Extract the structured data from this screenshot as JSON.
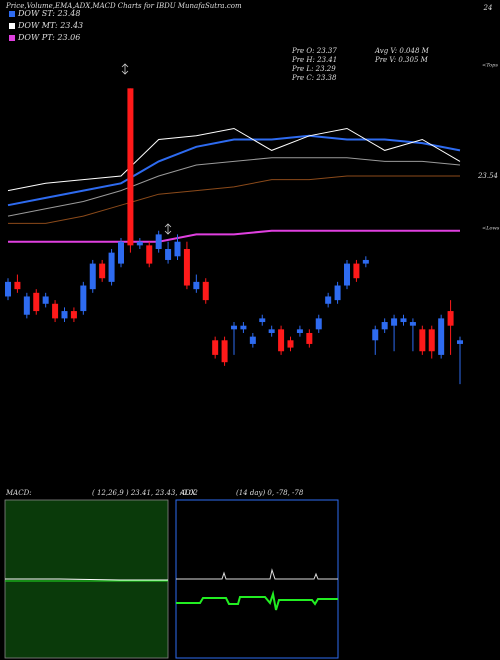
{
  "chart_data": {
    "type": "candlestick",
    "title": "Price,Volume,EMA,ADX,MACD Charts for IBDU MunafaSutra.com",
    "ylim": [
      22.68,
      24
    ],
    "yticks": [
      24,
      23.54
    ],
    "up_color": "#2e6bf0",
    "down_color": "#ff1a1a",
    "open": [
      23.21,
      23.25,
      23.16,
      23.22,
      23.19,
      23.19,
      23.15,
      23.17,
      23.17,
      23.23,
      23.3,
      23.25,
      23.3,
      23.78,
      23.35,
      23.35,
      23.34,
      23.31,
      23.32,
      23.34,
      23.23,
      23.25,
      23.09,
      23.09,
      23.12,
      23.12,
      23.08,
      23.14,
      23.11,
      23.12,
      23.09,
      23.11,
      23.11,
      23.12,
      23.19,
      23.2,
      23.24,
      23.3,
      23.3,
      23.09,
      23.12,
      23.13,
      23.14,
      23.13,
      23.12,
      23.12,
      23.05,
      23.17,
      23.08
    ],
    "high": [
      23.26,
      23.27,
      23.22,
      23.23,
      23.22,
      23.2,
      23.18,
      23.18,
      23.25,
      23.31,
      23.31,
      23.34,
      23.37,
      23.78,
      23.37,
      23.36,
      23.39,
      23.36,
      23.38,
      23.36,
      23.27,
      23.26,
      23.1,
      23.1,
      23.14,
      23.14,
      23.11,
      23.16,
      23.13,
      23.13,
      23.1,
      23.13,
      23.12,
      23.16,
      23.22,
      23.25,
      23.31,
      23.31,
      23.32,
      23.13,
      23.15,
      23.16,
      23.16,
      23.15,
      23.13,
      23.13,
      23.16,
      23.2,
      23.1
    ],
    "low": [
      23.2,
      23.22,
      23.15,
      23.16,
      23.18,
      23.14,
      23.14,
      23.14,
      23.16,
      23.22,
      23.25,
      23.24,
      23.29,
      23.33,
      23.34,
      23.29,
      23.33,
      23.3,
      23.31,
      23.23,
      23.22,
      23.19,
      23.04,
      23.02,
      23.05,
      23.11,
      23.07,
      23.13,
      23.1,
      23.05,
      23.06,
      23.1,
      23.07,
      23.11,
      23.18,
      23.19,
      23.23,
      23.25,
      23.29,
      23.05,
      23.11,
      23.06,
      23.13,
      23.06,
      23.05,
      23.04,
      23.04,
      23.05,
      22.97
    ],
    "close": [
      23.25,
      23.23,
      23.21,
      23.17,
      23.21,
      23.15,
      23.17,
      23.15,
      23.24,
      23.3,
      23.26,
      23.33,
      23.36,
      23.35,
      23.36,
      23.3,
      23.38,
      23.34,
      23.36,
      23.24,
      23.25,
      23.2,
      23.05,
      23.03,
      23.13,
      23.13,
      23.1,
      23.15,
      23.12,
      23.06,
      23.07,
      23.12,
      23.08,
      23.15,
      23.21,
      23.24,
      23.3,
      23.26,
      23.31,
      23.12,
      23.14,
      23.15,
      23.15,
      23.14,
      23.06,
      23.06,
      23.15,
      23.13,
      23.09
    ],
    "series": [
      {
        "name": "DOW ST: 23.48",
        "color": "#2e6bf0",
        "values": [
          23.46,
          23.48,
          23.5,
          23.52,
          23.58,
          23.62,
          23.64,
          23.64,
          23.65,
          23.64,
          23.64,
          23.63,
          23.61
        ]
      },
      {
        "name": "DOW MT: 23.43",
        "color": "#ffffff",
        "values": [
          23.5,
          23.52,
          23.53,
          23.54,
          23.64,
          23.65,
          23.67,
          23.61,
          23.65,
          23.67,
          23.61,
          23.64,
          23.58
        ]
      },
      {
        "name": "DOW PT: 23.06",
        "color": "#e040e0",
        "values": [
          23.36,
          23.36,
          23.36,
          23.36,
          23.36,
          23.38,
          23.38,
          23.39,
          23.39,
          23.39,
          23.39,
          23.39,
          23.39
        ]
      },
      {
        "color": "#9a9a9a",
        "values": [
          23.43,
          23.45,
          23.47,
          23.5,
          23.54,
          23.57,
          23.58,
          23.59,
          23.59,
          23.59,
          23.58,
          23.58,
          23.57
        ]
      },
      {
        "color": "#8b4a1a",
        "values": [
          23.41,
          23.41,
          23.43,
          23.46,
          23.49,
          23.5,
          23.51,
          23.53,
          23.53,
          23.54,
          23.54,
          23.54,
          23.54
        ]
      }
    ],
    "info": [
      "Pre  O: 23.37",
      "Pre  H: 23.41",
      "Pre  L: 23.29",
      "Pre  C: 23.38",
      "Avg V: 0.048 M",
      "Pre  V: 0.305 M"
    ],
    "side_labels": [
      "<Tops",
      "<Lows"
    ],
    "panels": [
      {
        "label": "MACD:",
        "params": "( 12,26,9 ) 23.41, 23.43, -0.02"
      },
      {
        "label": "ADX",
        "params": "(14  day) 0, -78, -78"
      }
    ]
  }
}
